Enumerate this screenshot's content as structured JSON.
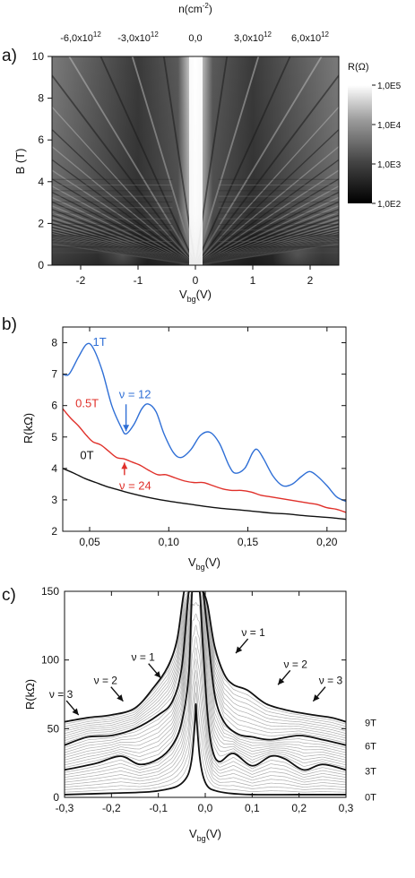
{
  "colors": {
    "blue": "#2f6fd6",
    "red": "#e0302a",
    "black": "#111111",
    "grey": "#8c8c8c"
  },
  "chart_data": [
    {
      "panel_label": "a)",
      "type": "heatmap",
      "xlabel_main": "V",
      "xlabel_sub": "bg",
      "xlabel_unit": "(V)",
      "ylabel": "B (T)",
      "xlim": [
        -2.5,
        2.5
      ],
      "ylim": [
        0,
        10
      ],
      "xticks": [
        -2,
        -1,
        0,
        1,
        2
      ],
      "xtick_labels": [
        "-2",
        "-1",
        "0",
        "1",
        "2"
      ],
      "yticks": [
        0,
        2,
        4,
        6,
        8,
        10
      ],
      "ytick_labels": [
        "0",
        "2",
        "4",
        "6",
        "8",
        "10"
      ],
      "top_axis": {
        "label_main": "n(cm",
        "label_sup": "-2",
        "label_end": ")",
        "ticks": [
          -2.0,
          -1.0,
          0.0,
          1.0,
          2.0
        ],
        "tick_labels": [
          {
            "base": "-6,0x10",
            "exp": "12"
          },
          {
            "base": "-3,0x10",
            "exp": "12"
          },
          {
            "base": "0,0",
            "exp": ""
          },
          {
            "base": "3,0x10",
            "exp": "12"
          },
          {
            "base": "6,0x10",
            "exp": "12"
          }
        ]
      },
      "colorbar": {
        "label": "R(Ω)",
        "scale": "log",
        "ticks": [
          100,
          1000,
          10000,
          100000
        ],
        "tick_labels": [
          "1,0E2",
          "1,0E3",
          "1,0E4",
          "1,0E5"
        ]
      }
    },
    {
      "panel_label": "b)",
      "type": "line",
      "xlabel_main": "V",
      "xlabel_sub": "bg",
      "xlabel_unit": "(V)",
      "ylabel": "R(kΩ)",
      "xlim": [
        0.033,
        0.212
      ],
      "ylim": [
        2,
        8.5
      ],
      "xticks": [
        0.05,
        0.1,
        0.15,
        0.2
      ],
      "xtick_labels": [
        "0,05",
        "0,10",
        "0,15",
        "0,20"
      ],
      "yticks": [
        2,
        3,
        4,
        5,
        6,
        7,
        8
      ],
      "ytick_labels": [
        "2",
        "3",
        "4",
        "5",
        "6",
        "7",
        "8"
      ],
      "series": [
        {
          "name": "1T",
          "color": "#2f6fd6",
          "x": [
            0.033,
            0.037,
            0.043,
            0.048,
            0.052,
            0.058,
            0.064,
            0.07,
            0.073,
            0.078,
            0.083,
            0.087,
            0.092,
            0.097,
            0.103,
            0.108,
            0.114,
            0.12,
            0.126,
            0.132,
            0.138,
            0.142,
            0.148,
            0.153,
            0.156,
            0.16,
            0.166,
            0.172,
            0.178,
            0.184,
            0.189,
            0.194,
            0.2,
            0.206,
            0.212
          ],
          "y": [
            7.0,
            7.0,
            7.55,
            7.95,
            7.85,
            7.1,
            6.0,
            5.3,
            5.1,
            5.4,
            5.9,
            6.05,
            5.8,
            5.1,
            4.5,
            4.35,
            4.6,
            5.05,
            5.15,
            4.8,
            4.1,
            3.85,
            4.0,
            4.5,
            4.6,
            4.3,
            3.75,
            3.45,
            3.5,
            3.75,
            3.9,
            3.75,
            3.45,
            3.1,
            2.95
          ]
        },
        {
          "name": "0.5T",
          "color": "#e0302a",
          "x": [
            0.033,
            0.038,
            0.043,
            0.048,
            0.052,
            0.057,
            0.062,
            0.067,
            0.072,
            0.077,
            0.082,
            0.087,
            0.093,
            0.098,
            0.104,
            0.11,
            0.116,
            0.122,
            0.128,
            0.134,
            0.14,
            0.146,
            0.152,
            0.158,
            0.164,
            0.17,
            0.176,
            0.182,
            0.188,
            0.194,
            0.2,
            0.206,
            0.212
          ],
          "y": [
            5.9,
            5.6,
            5.35,
            5.05,
            4.85,
            4.75,
            4.55,
            4.35,
            4.3,
            4.2,
            4.1,
            3.95,
            3.8,
            3.8,
            3.7,
            3.6,
            3.55,
            3.55,
            3.45,
            3.35,
            3.3,
            3.3,
            3.25,
            3.15,
            3.1,
            3.05,
            3.0,
            2.95,
            2.9,
            2.85,
            2.75,
            2.7,
            2.6
          ]
        },
        {
          "name": "0T",
          "color": "#111111",
          "x": [
            0.033,
            0.04,
            0.047,
            0.054,
            0.061,
            0.068,
            0.075,
            0.085,
            0.095,
            0.105,
            0.115,
            0.125,
            0.135,
            0.145,
            0.155,
            0.165,
            0.175,
            0.185,
            0.195,
            0.205,
            0.212
          ],
          "y": [
            4.0,
            3.85,
            3.68,
            3.55,
            3.42,
            3.32,
            3.22,
            3.1,
            3.0,
            2.92,
            2.85,
            2.78,
            2.72,
            2.68,
            2.63,
            2.58,
            2.55,
            2.5,
            2.46,
            2.42,
            2.38
          ]
        }
      ],
      "annotations": [
        {
          "text": "ν = 12",
          "color": "#2f6fd6",
          "x": 0.073,
          "y": 5.1,
          "direction": "down"
        },
        {
          "text": "ν = 24",
          "color": "#e0302a",
          "x": 0.072,
          "y": 4.3,
          "direction": "up"
        }
      ]
    },
    {
      "panel_label": "c)",
      "type": "line",
      "xlabel_main": "V",
      "xlabel_sub": "bg",
      "xlabel_unit": "(V)",
      "ylabel": "R(kΩ)",
      "xlim": [
        -0.3,
        0.3
      ],
      "ylim": [
        0,
        150
      ],
      "xticks": [
        -0.3,
        -0.2,
        -0.1,
        0.0,
        0.1,
        0.2,
        0.3
      ],
      "xtick_labels": [
        "-0,3",
        "-0,2",
        "-0,1",
        "0,0",
        "0,1",
        "0,2",
        "0,3"
      ],
      "yticks": [
        0,
        50,
        100,
        150
      ],
      "ytick_labels": [
        "0",
        "50",
        "100",
        "150"
      ],
      "series": [
        {
          "name": "0T",
          "x": [
            -0.3,
            -0.2,
            -0.12,
            -0.08,
            -0.06,
            -0.045,
            -0.035,
            -0.028,
            -0.022,
            -0.02,
            -0.018,
            -0.012,
            -0.005,
            0.005,
            0.02,
            0.05,
            0.1,
            0.2,
            0.3
          ],
          "y": [
            2,
            3,
            4,
            6,
            8,
            12,
            18,
            30,
            55,
            68,
            55,
            30,
            16,
            8,
            5,
            3,
            2,
            2,
            2
          ]
        },
        {
          "name": "3T",
          "x": [
            -0.3,
            -0.27,
            -0.23,
            -0.18,
            -0.14,
            -0.1,
            -0.07,
            -0.05,
            -0.035,
            -0.028,
            -0.02,
            -0.012,
            -0.005,
            0.005,
            0.015,
            0.03,
            0.06,
            0.1,
            0.14,
            0.17,
            0.21,
            0.25,
            0.3
          ],
          "y": [
            20,
            22,
            25,
            30,
            24,
            28,
            38,
            55,
            90,
            150,
            150,
            150,
            110,
            60,
            35,
            26,
            32,
            23,
            30,
            28,
            20,
            24,
            20
          ]
        },
        {
          "name": "6T",
          "x": [
            -0.3,
            -0.25,
            -0.2,
            -0.15,
            -0.1,
            -0.07,
            -0.05,
            -0.035,
            -0.028,
            -0.02,
            -0.012,
            -0.005,
            0.005,
            0.02,
            0.04,
            0.07,
            0.1,
            0.14,
            0.2,
            0.25,
            0.3
          ],
          "y": [
            38,
            44,
            45,
            50,
            60,
            70,
            95,
            150,
            150,
            150,
            150,
            150,
            120,
            75,
            55,
            46,
            44,
            42,
            45,
            42,
            38
          ]
        },
        {
          "name": "9T",
          "x": [
            -0.3,
            -0.25,
            -0.2,
            -0.15,
            -0.11,
            -0.08,
            -0.06,
            -0.045,
            -0.035,
            -0.028,
            -0.02,
            -0.012,
            -0.005,
            0.005,
            0.02,
            0.04,
            0.06,
            0.09,
            0.13,
            0.18,
            0.23,
            0.27,
            0.3
          ],
          "y": [
            55,
            58,
            60,
            65,
            80,
            95,
            115,
            150,
            150,
            150,
            150,
            150,
            150,
            140,
            110,
            90,
            82,
            78,
            68,
            63,
            60,
            58,
            55
          ]
        }
      ],
      "right_labels": [
        "9T",
        "6T",
        "3T",
        "0T"
      ],
      "annotations": [
        {
          "text": "ν = 1",
          "x": -0.095,
          "y": 85,
          "side": "left"
        },
        {
          "text": "ν = 2",
          "x": -0.175,
          "y": 68,
          "side": "left"
        },
        {
          "text": "ν = 3",
          "x": -0.27,
          "y": 58,
          "side": "left"
        },
        {
          "text": "ν = 1",
          "x": 0.065,
          "y": 103,
          "side": "right"
        },
        {
          "text": "ν = 2",
          "x": 0.155,
          "y": 80,
          "side": "right"
        },
        {
          "text": "ν = 3",
          "x": 0.23,
          "y": 68,
          "side": "right"
        }
      ]
    }
  ]
}
